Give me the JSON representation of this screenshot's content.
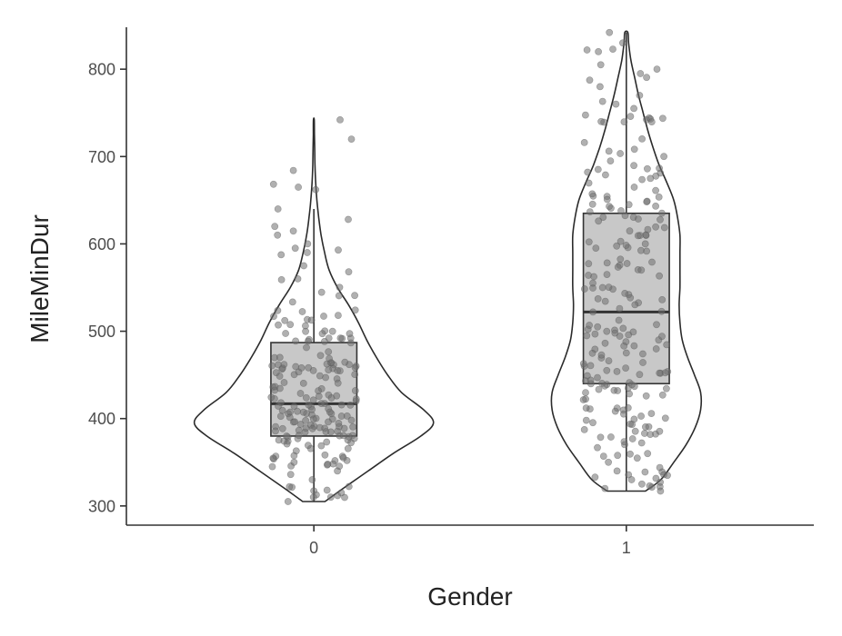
{
  "chart_data": {
    "type": "violin",
    "xlabel": "Gender",
    "ylabel": "MileMinDur",
    "categories": [
      "0",
      "1"
    ],
    "ylim": [
      278,
      848
    ],
    "yticks": [
      300,
      400,
      500,
      600,
      700,
      800
    ],
    "grid": false,
    "legend": "none",
    "groups": [
      {
        "category": "0",
        "box": {
          "whisker_low": 305,
          "q1": 380,
          "median": 417,
          "q3": 487,
          "whisker_high": 640
        },
        "violin": {
          "y": [
            305,
            320,
            340,
            360,
            380,
            395,
            410,
            430,
            450,
            470,
            490,
            510,
            530,
            550,
            570,
            590,
            610,
            630,
            650,
            670,
            690,
            710,
            725,
            742
          ],
          "halfwidth": [
            0.08,
            0.21,
            0.39,
            0.57,
            0.77,
            0.86,
            0.79,
            0.63,
            0.53,
            0.45,
            0.38,
            0.32,
            0.25,
            0.17,
            0.11,
            0.077,
            0.052,
            0.035,
            0.022,
            0.013,
            0.008,
            0.006,
            0.004,
            0.003
          ]
        },
        "violin_halfwidth_max_units": 0.445,
        "jitter_count": 190,
        "outlier_points": [
          305,
          310,
          315,
          318,
          322,
          330,
          336,
          340,
          345,
          350,
          560,
          575,
          590,
          600,
          610,
          620,
          628,
          640,
          662,
          720,
          742
        ]
      },
      {
        "category": "1",
        "box": {
          "whisker_low": 317,
          "q1": 440,
          "median": 522,
          "q3": 635,
          "whisker_high": 842
        },
        "violin": {
          "y": [
            317,
            330,
            350,
            370,
            390,
            410,
            430,
            450,
            470,
            490,
            510,
            530,
            550,
            570,
            590,
            610,
            630,
            650,
            670,
            690,
            710,
            730,
            750,
            770,
            790,
            810,
            830,
            842
          ],
          "halfwidth": [
            0.25,
            0.45,
            0.62,
            0.78,
            0.9,
            0.97,
            0.97,
            0.89,
            0.8,
            0.73,
            0.7,
            0.69,
            0.7,
            0.7,
            0.7,
            0.7,
            0.67,
            0.62,
            0.53,
            0.43,
            0.35,
            0.28,
            0.22,
            0.16,
            0.11,
            0.06,
            0.03,
            0.02
          ]
        },
        "violin_halfwidth_max_units": 0.245,
        "jitter_count": 210,
        "outlier_points": [
          317,
          320,
          330,
          335,
          340,
          350,
          360,
          740,
          755,
          760,
          770,
          780,
          795,
          800,
          805,
          820,
          822,
          830,
          842
        ]
      }
    ]
  }
}
